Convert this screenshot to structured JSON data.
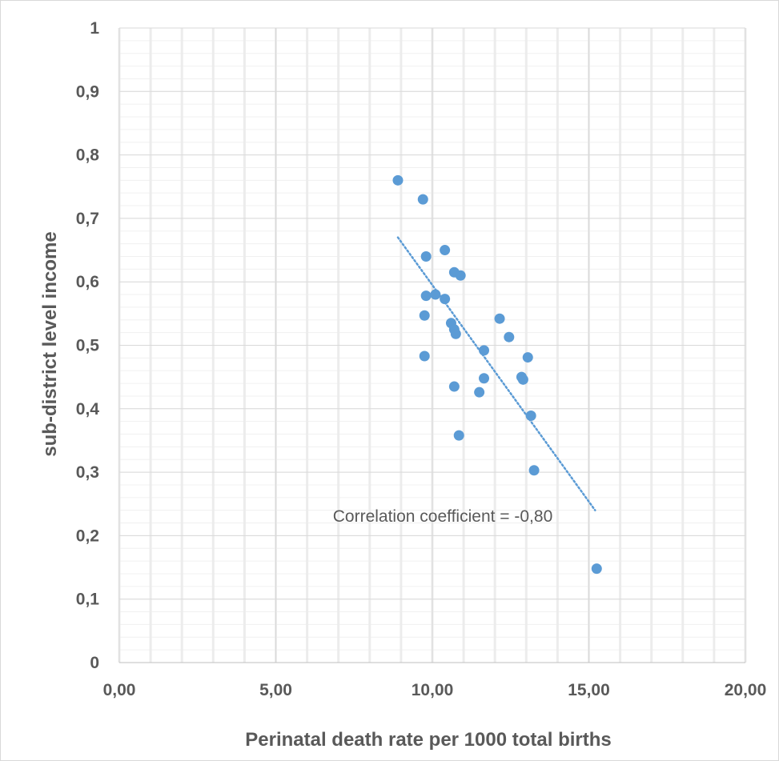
{
  "chart_data": {
    "type": "scatter",
    "xlabel": "Perinatal death rate per 1000 total births",
    "ylabel": "sub-district level income",
    "xlim": [
      0,
      20
    ],
    "ylim": [
      0,
      1
    ],
    "x_ticks": [
      "0,00",
      "5,00",
      "10,00",
      "15,00",
      "20,00"
    ],
    "y_ticks": [
      "0",
      "0,1",
      "0,2",
      "0,3",
      "0,4",
      "0,5",
      "0,6",
      "0,7",
      "0,8",
      "0,9",
      "1"
    ],
    "grid": "on (major and minor)",
    "marker_color": "#5b9bd5",
    "trendline": {
      "style": "dotted linear",
      "x": [
        8.9,
        15.2
      ],
      "y": [
        0.67,
        0.24
      ]
    },
    "annotation": "Correlation coefficient = -0,80",
    "series": [
      {
        "x": [
          8.9,
          9.7,
          9.8,
          10.4,
          10.7,
          10.9,
          9.8,
          10.1,
          10.4,
          9.75,
          10.6,
          10.7,
          10.75,
          9.75,
          12.15,
          12.45,
          11.65,
          13.05,
          11.65,
          12.85,
          12.9,
          10.7,
          11.5,
          13.15,
          10.85,
          13.25,
          15.25
        ],
        "y": [
          0.76,
          0.73,
          0.64,
          0.65,
          0.615,
          0.61,
          0.578,
          0.58,
          0.573,
          0.547,
          0.535,
          0.525,
          0.518,
          0.483,
          0.542,
          0.513,
          0.492,
          0.481,
          0.448,
          0.45,
          0.446,
          0.435,
          0.426,
          0.389,
          0.358,
          0.303,
          0.148
        ]
      }
    ]
  }
}
